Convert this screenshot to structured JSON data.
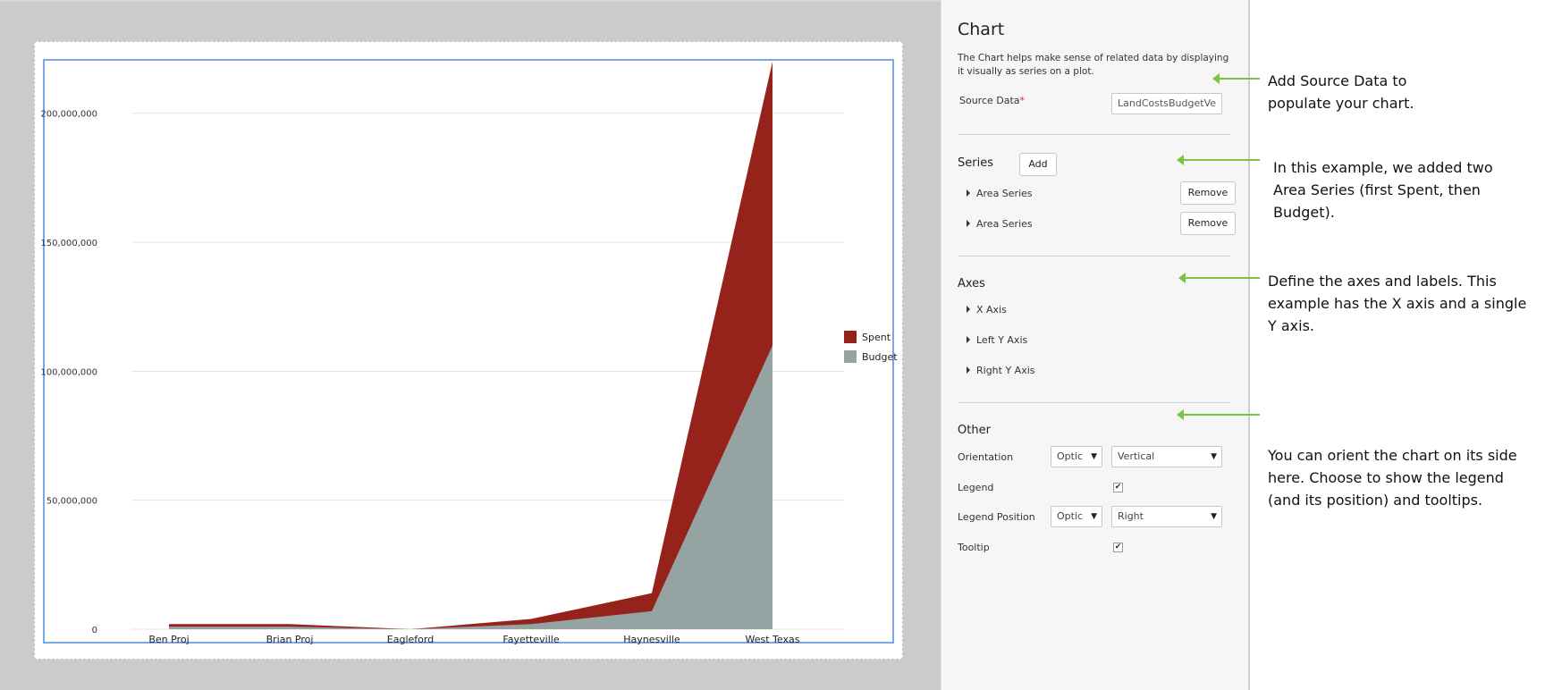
{
  "panel": {
    "title": "Chart",
    "description": "The Chart helps make sense of related data by displaying it visually as series on a plot.",
    "source_data_label": "Source Data",
    "required_marker": "*",
    "source_data_value": "LandCostsBudgetVe",
    "series_title": "Series",
    "add_label": "Add",
    "series_items": [
      {
        "label": "Area Series",
        "remove_label": "Remove"
      },
      {
        "label": "Area Series",
        "remove_label": "Remove"
      }
    ],
    "axes_title": "Axes",
    "axes_items": [
      "X Axis",
      "Left Y Axis",
      "Right Y Axis"
    ],
    "other_title": "Other",
    "orientation_label": "Orientation",
    "orientation_option": "Optic",
    "orientation_value": "Vertical",
    "legend_label": "Legend",
    "legend_checked": true,
    "legend_position_label": "Legend Position",
    "legend_position_option": "Optic",
    "legend_position_value": "Right",
    "tooltip_label": "Tooltip",
    "tooltip_checked": true,
    "check_glyph": "✔",
    "caret_glyph": "▼"
  },
  "annotations": {
    "source_data": "Add Source Data to populate your chart.",
    "series": "In this example, we added two Area Series (first Spent, then Budget).",
    "axes": "Define the axes and labels. This example has the X axis and a single Y axis.",
    "other": "You can orient the chart on its side here. Choose to show the legend (and its position) and tooltips."
  },
  "colors": {
    "spent": "#96231b",
    "budget": "#95a3a2",
    "arrow": "#7cc243",
    "gridline": "#e3e3e3"
  },
  "chart_data": {
    "type": "area",
    "categories": [
      "Ben Proj",
      "Brian Proj",
      "Eagleford",
      "Fayetteville",
      "Haynesville",
      "West Texas"
    ],
    "series": [
      {
        "name": "Spent",
        "values": [
          2000000,
          2000000,
          0,
          4000000,
          14000000,
          220000000
        ]
      },
      {
        "name": "Budget",
        "values": [
          1000000,
          1000000,
          0,
          2000000,
          7000000,
          110000000
        ]
      }
    ],
    "yticks": [
      0,
      50000000,
      100000000,
      150000000,
      200000000
    ],
    "ytick_labels": [
      "0",
      "50,000,000",
      "100,000,000",
      "150,000,000",
      "200,000,000"
    ],
    "ylim": [
      0,
      220000000
    ],
    "grid": true,
    "legend_position": "right"
  }
}
